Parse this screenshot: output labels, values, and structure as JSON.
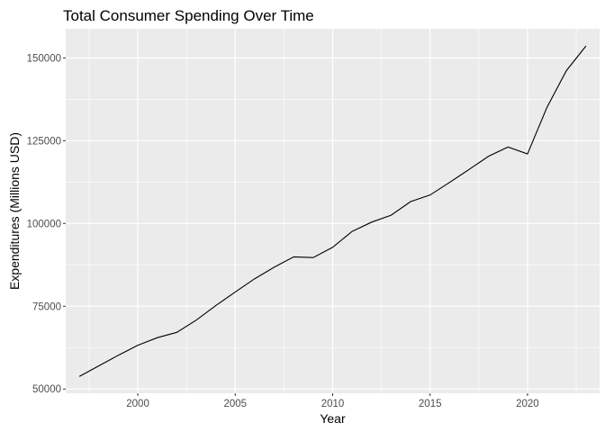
{
  "chart_data": {
    "type": "line",
    "title": "Total Consumer Spending Over Time",
    "xlabel": "Year",
    "ylabel": "Expenditures (Millions USD)",
    "xlim": [
      1996.3,
      2023.7
    ],
    "ylim": [
      48700,
      158800
    ],
    "x_ticks": [
      2000,
      2005,
      2010,
      2015,
      2020
    ],
    "x_minor_ticks": [
      1997.5,
      2002.5,
      2007.5,
      2012.5,
      2017.5,
      2022.5
    ],
    "y_ticks": [
      50000,
      75000,
      100000,
      125000,
      150000
    ],
    "y_minor_ticks": [
      62500,
      87500,
      112500,
      137500
    ],
    "x_tick_labels": [
      "2000",
      "2005",
      "2010",
      "2015",
      "2020"
    ],
    "y_tick_labels": [
      "50000",
      "75000",
      "100000",
      "125000",
      "150000"
    ],
    "grid": true,
    "legend": "none",
    "colors": {
      "panel": "#ebebeb",
      "grid": "#ffffff",
      "line": "#000000",
      "tick_text": "#4d4d4d"
    },
    "series": [
      {
        "x": [
          1997,
          1998,
          1999,
          2000,
          2001,
          2002,
          2003,
          2004,
          2005,
          2006,
          2007,
          2008,
          2009,
          2010,
          2011,
          2012,
          2013,
          2014,
          2015,
          2016,
          2017,
          2018,
          2019,
          2020,
          2021,
          2022,
          2023
        ],
        "values": [
          53800,
          57000,
          60200,
          63200,
          65500,
          67100,
          70800,
          75200,
          79300,
          83300,
          86800,
          89900,
          89700,
          92800,
          97600,
          100400,
          102500,
          106600,
          108600,
          112400,
          116300,
          120300,
          123100,
          121000,
          135100,
          146200,
          153600
        ]
      }
    ]
  }
}
